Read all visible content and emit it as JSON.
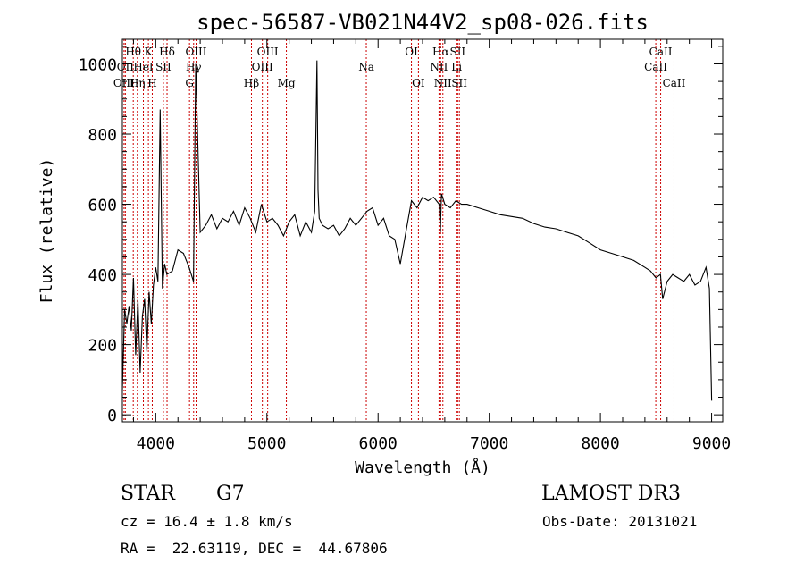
{
  "chart_data": {
    "type": "line",
    "title": "spec-56587-VB021N44V2_sp08-026.fits",
    "xlabel": "Wavelength (Å)",
    "ylabel": "Flux (relative)",
    "xlim": [
      3700,
      9100
    ],
    "ylim": [
      -20,
      1070
    ],
    "xticks": [
      4000,
      5000,
      6000,
      7000,
      8000,
      9000
    ],
    "yticks": [
      0,
      200,
      400,
      600,
      800,
      1000
    ],
    "grid": false,
    "line_color": "#000000",
    "marker_color": "#cc0000",
    "series": [
      {
        "x": [
          3700,
          3720,
          3740,
          3760,
          3780,
          3800,
          3820,
          3840,
          3860,
          3880,
          3900,
          3920,
          3940,
          3960,
          3980,
          4000,
          4020,
          4040,
          4060,
          4080,
          4100,
          4150,
          4200,
          4250,
          4300,
          4340,
          4360,
          4400,
          4450,
          4500,
          4550,
          4600,
          4650,
          4700,
          4750,
          4800,
          4850,
          4900,
          4950,
          5000,
          5050,
          5100,
          5150,
          5200,
          5250,
          5300,
          5350,
          5400,
          5430,
          5450,
          5460,
          5470,
          5500,
          5550,
          5600,
          5650,
          5700,
          5750,
          5800,
          5850,
          5900,
          5950,
          6000,
          6050,
          6100,
          6150,
          6200,
          6250,
          6300,
          6350,
          6400,
          6450,
          6500,
          6550,
          6560,
          6570,
          6600,
          6650,
          6700,
          6750,
          6800,
          6900,
          7000,
          7100,
          7200,
          7300,
          7400,
          7500,
          7600,
          7700,
          7800,
          7900,
          8000,
          8100,
          8200,
          8300,
          8400,
          8450,
          8500,
          8540,
          8560,
          8600,
          8650,
          8700,
          8750,
          8800,
          8850,
          8900,
          8950,
          8980,
          9000
        ],
        "y": [
          70,
          300,
          260,
          310,
          240,
          390,
          170,
          330,
          120,
          280,
          330,
          180,
          350,
          260,
          370,
          420,
          380,
          870,
          360,
          430,
          400,
          410,
          470,
          460,
          420,
          380,
          1000,
          520,
          540,
          570,
          530,
          560,
          550,
          580,
          540,
          590,
          560,
          520,
          600,
          550,
          560,
          540,
          510,
          550,
          570,
          510,
          550,
          520,
          580,
          1010,
          640,
          560,
          540,
          530,
          540,
          510,
          530,
          560,
          540,
          560,
          580,
          590,
          540,
          560,
          510,
          500,
          430,
          520,
          610,
          590,
          620,
          610,
          620,
          600,
          520,
          630,
          600,
          590,
          610,
          600,
          600,
          590,
          580,
          570,
          565,
          560,
          545,
          535,
          530,
          520,
          510,
          490,
          470,
          460,
          450,
          440,
          420,
          410,
          390,
          400,
          330,
          380,
          400,
          390,
          380,
          400,
          370,
          380,
          420,
          360,
          40
        ]
      }
    ],
    "line_markers": [
      {
        "label": "Hθ",
        "x": 3798,
        "row": 0
      },
      {
        "label": "OII",
        "x": 3727,
        "row": 1
      },
      {
        "label": "OIII",
        "x": 3715,
        "row": 2
      },
      {
        "label": "K",
        "x": 3934,
        "row": 0
      },
      {
        "label": "HeI",
        "x": 3889,
        "row": 1
      },
      {
        "label": "Hη",
        "x": 3835,
        "row": 2
      },
      {
        "label": "Hδ",
        "x": 4102,
        "row": 0
      },
      {
        "label": "SII",
        "x": 4069,
        "row": 1
      },
      {
        "label": "H",
        "x": 3969,
        "row": 2
      },
      {
        "label": "OIII",
        "x": 4363,
        "row": 0
      },
      {
        "label": "Hγ",
        "x": 4341,
        "row": 1
      },
      {
        "label": "G",
        "x": 4304,
        "row": 2
      },
      {
        "label": "OIII",
        "x": 5007,
        "row": 0
      },
      {
        "label": "OIII",
        "x": 4959,
        "row": 1
      },
      {
        "label": "Hβ",
        "x": 4861,
        "row": 2
      },
      {
        "label": "Mg",
        "x": 5175,
        "row": 2
      },
      {
        "label": "Na",
        "x": 5894,
        "row": 1
      },
      {
        "label": "OI",
        "x": 6300,
        "row": 0
      },
      {
        "label": "OI",
        "x": 6363,
        "row": 2
      },
      {
        "label": "Hα",
        "x": 6563,
        "row": 0
      },
      {
        "label": "NII",
        "x": 6548,
        "row": 1
      },
      {
        "label": "NII",
        "x": 6583,
        "row": 2
      },
      {
        "label": "SII",
        "x": 6716,
        "row": 0
      },
      {
        "label": "Li",
        "x": 6707,
        "row": 1
      },
      {
        "label": "SII",
        "x": 6731,
        "row": 2
      },
      {
        "label": "CaII",
        "x": 8542,
        "row": 0
      },
      {
        "label": "CaII",
        "x": 8498,
        "row": 1
      },
      {
        "label": "CaII",
        "x": 8662,
        "row": 2
      }
    ]
  },
  "info": {
    "object_class": "STAR",
    "subclass": "G7",
    "survey": "LAMOST DR3",
    "redshift": "cz = 16.4 ± 1.8 km/s",
    "obs_date": "Obs-Date: 20131021",
    "coords": "RA =  22.63119, DEC =  44.67806"
  }
}
